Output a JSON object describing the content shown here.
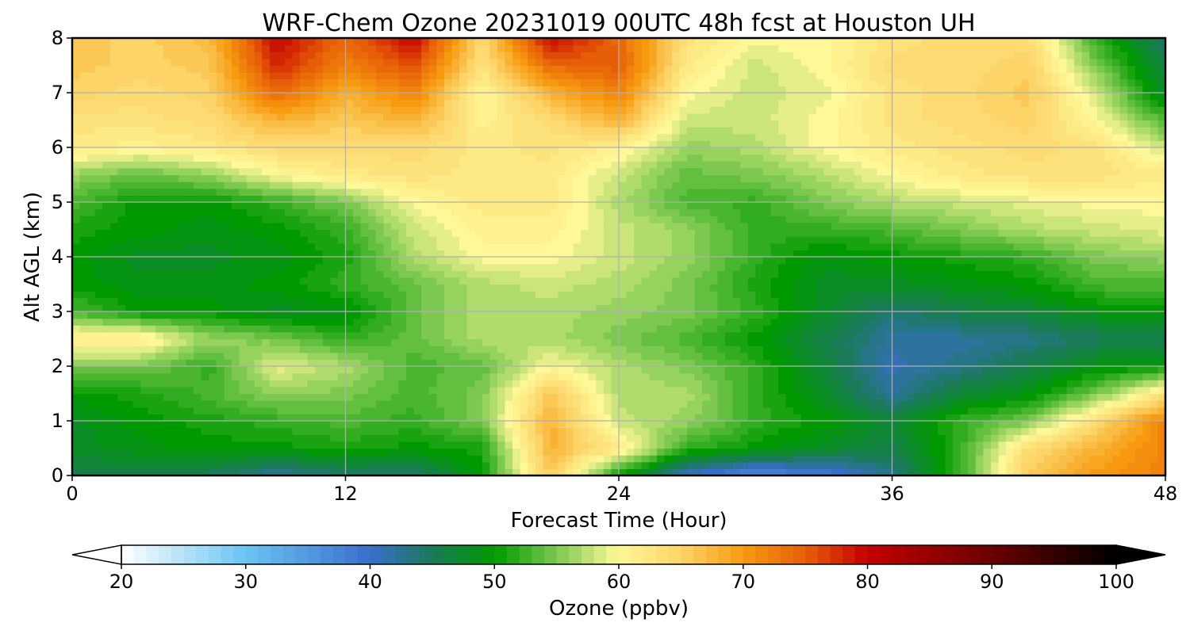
{
  "chart_data": {
    "type": "heatmap",
    "title": "WRF-Chem Ozone  20231019 00UTC 48h fcst at Houston UH",
    "xlabel": "Forecast Time (Hour)",
    "ylabel": "Alt AGL (km)",
    "xlim": [
      0,
      48
    ],
    "ylim": [
      0,
      8
    ],
    "xticks": [
      "0",
      "12",
      "24",
      "36",
      "48"
    ],
    "yticks": [
      "0",
      "1",
      "2",
      "3",
      "4",
      "5",
      "6",
      "7",
      "8"
    ],
    "grid": true,
    "x": [
      0,
      3,
      6,
      9,
      12,
      15,
      18,
      21,
      24,
      27,
      30,
      33,
      36,
      39,
      42,
      45,
      48
    ],
    "y": [
      0,
      0.5,
      1,
      1.5,
      2,
      2.5,
      3,
      3.5,
      4,
      4.5,
      5,
      5.5,
      6,
      6.5,
      7,
      7.5,
      8
    ],
    "z": [
      [
        46,
        46,
        45,
        42,
        44,
        44,
        50,
        66,
        50,
        40,
        36,
        38,
        43,
        52,
        66,
        70,
        72
      ],
      [
        48,
        49,
        50,
        50,
        51,
        50,
        51,
        68,
        62,
        52,
        50,
        48,
        46,
        52,
        64,
        68,
        72
      ],
      [
        48,
        50,
        51,
        52,
        53,
        52,
        55,
        68,
        58,
        56,
        52,
        50,
        47,
        52,
        55,
        64,
        72
      ],
      [
        50,
        51,
        53,
        56,
        55,
        53,
        55,
        66,
        57,
        57,
        52,
        48,
        42,
        47,
        49,
        55,
        63
      ],
      [
        55,
        55,
        52,
        59,
        57,
        53,
        54,
        60,
        57,
        55,
        52,
        47,
        41,
        43,
        46,
        49,
        50
      ],
      [
        62,
        62,
        56,
        55,
        52,
        54,
        57,
        57,
        55,
        53,
        50,
        46,
        42,
        42,
        43,
        45,
        45
      ],
      [
        53,
        50,
        50,
        48,
        49,
        54,
        57,
        57,
        56,
        55,
        52,
        48,
        44,
        46,
        47,
        49,
        49
      ],
      [
        50,
        49,
        49,
        50,
        52,
        54,
        57,
        58,
        57,
        55,
        51,
        48,
        48,
        49,
        50,
        53,
        53
      ],
      [
        50,
        48,
        48,
        49,
        51,
        57,
        60,
        60,
        58,
        56,
        52,
        49,
        50,
        51,
        52,
        55,
        56
      ],
      [
        51,
        50,
        49,
        50,
        52,
        58,
        61,
        61,
        58,
        56,
        52,
        52,
        53,
        55,
        57,
        58,
        59
      ],
      [
        53,
        50,
        50,
        52,
        55,
        60,
        62,
        62,
        57,
        53,
        52,
        55,
        57,
        58,
        59,
        60,
        60
      ],
      [
        56,
        54,
        56,
        60,
        62,
        63,
        62,
        62,
        58,
        54,
        55,
        57,
        60,
        62,
        63,
        63,
        62
      ],
      [
        62,
        61,
        62,
        64,
        64,
        64,
        62,
        63,
        61,
        56,
        57,
        60,
        62,
        63,
        64,
        63,
        58
      ],
      [
        63,
        63,
        64,
        68,
        66,
        68,
        61,
        64,
        68,
        58,
        58,
        60,
        63,
        64,
        65,
        60,
        53
      ],
      [
        65,
        64,
        65,
        74,
        68,
        72,
        60,
        68,
        72,
        60,
        58,
        59,
        63,
        64,
        66,
        58,
        48
      ],
      [
        66,
        65,
        66,
        78,
        72,
        76,
        63,
        74,
        75,
        62,
        58,
        60,
        64,
        64,
        65,
        55,
        46
      ],
      [
        66,
        65,
        67,
        80,
        74,
        80,
        64,
        80,
        74,
        63,
        60,
        60,
        63,
        64,
        64,
        52,
        44
      ]
    ],
    "colorbar": {
      "label": "Ozone  (ppbv)",
      "min": 20,
      "max": 100,
      "ticks": [
        "20",
        "30",
        "40",
        "50",
        "60",
        "70",
        "80",
        "90",
        "100"
      ],
      "extend": "both",
      "orientation": "horizontal"
    },
    "colormap": [
      {
        "v": 20,
        "c": "#ffffff"
      },
      {
        "v": 30,
        "c": "#6ac4f2"
      },
      {
        "v": 40,
        "c": "#3a6ecc"
      },
      {
        "v": 45,
        "c": "#1a7a5a"
      },
      {
        "v": 50,
        "c": "#009a00"
      },
      {
        "v": 55,
        "c": "#7cc850"
      },
      {
        "v": 60,
        "c": "#fff898"
      },
      {
        "v": 65,
        "c": "#fcd468"
      },
      {
        "v": 70,
        "c": "#f79a10"
      },
      {
        "v": 75,
        "c": "#e75e08"
      },
      {
        "v": 80,
        "c": "#c40000"
      },
      {
        "v": 90,
        "c": "#6a0000"
      },
      {
        "v": 100,
        "c": "#000000"
      }
    ],
    "grid_color": "#b0b0b0"
  }
}
